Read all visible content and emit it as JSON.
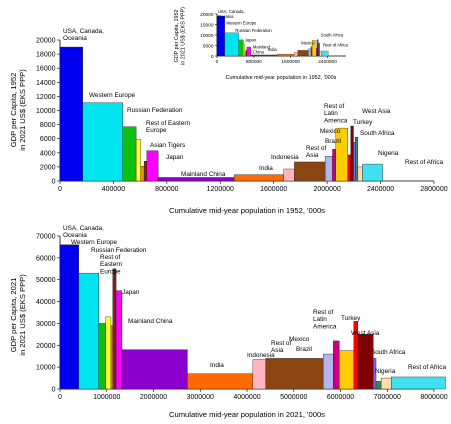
{
  "chart_data": [
    {
      "type": "bar",
      "variable_width": true,
      "title": "",
      "xlabel": "Cumulative mid-year population in 1952, '000s",
      "ylabel": "GDP per Capita, 1952 in 2021 US$ (EKS PPP)",
      "xlim": [
        0,
        2800000
      ],
      "ylim": [
        0,
        20000
      ],
      "xticks": [
        0,
        400000,
        800000,
        1200000,
        1600000,
        2000000,
        2400000,
        2800000
      ],
      "yticks": [
        0,
        2000,
        4000,
        6000,
        8000,
        10000,
        12000,
        14000,
        16000,
        18000,
        20000
      ],
      "bars": [
        {
          "label": "USA, Canada, Oceania",
          "population": 170000,
          "gdp": 19000,
          "color": "#0000ee"
        },
        {
          "label": "Western Europe",
          "population": 300000,
          "gdp": 11100,
          "color": "#00e5f0"
        },
        {
          "label": "Russian Federation",
          "population": 100000,
          "gdp": 7700,
          "color": "#10c010"
        },
        {
          "label": "Rest of Eastern Europe",
          "population": 35000,
          "gdp": 5900,
          "color": "#ffff33"
        },
        {
          "label": "",
          "population": 25000,
          "gdp": 2100,
          "color": "#ff8c00"
        },
        {
          "label": "Asian Tigers",
          "population": 20000,
          "gdp": 2800,
          "color": "#8b1a1a"
        },
        {
          "label": "Japan",
          "population": 85000,
          "gdp": 4300,
          "color": "#ff00ff"
        },
        {
          "label": "Mainland China",
          "population": 570000,
          "gdp": 500,
          "color": "#8b00cc"
        },
        {
          "label": "India",
          "population": 370000,
          "gdp": 900,
          "color": "#ff6a00"
        },
        {
          "label": "Indonesia",
          "population": 80000,
          "gdp": 1700,
          "color": "#ffb6c1"
        },
        {
          "label": "Rest of Asia",
          "population": 230000,
          "gdp": 2700,
          "color": "#8b4513"
        },
        {
          "label": "Brazil",
          "population": 55000,
          "gdp": 3500,
          "color": "#b4b4f0"
        },
        {
          "label": "Mexico",
          "population": 25000,
          "gdp": 4500,
          "color": "#c8007d"
        },
        {
          "label": "Rest of Latin America",
          "population": 90000,
          "gdp": 7500,
          "color": "#ffcc00"
        },
        {
          "label": "Turkey",
          "population": 22000,
          "gdp": 3700,
          "color": "#ff0000"
        },
        {
          "label": "West Asia",
          "population": 20000,
          "gdp": 7800,
          "color": "#800000"
        },
        {
          "label": "South Africa",
          "population": 13000,
          "gdp": 5500,
          "color": "#7b68ee"
        },
        {
          "label": "",
          "population": 20000,
          "gdp": 6200,
          "color": "#2e8b57"
        },
        {
          "label": "Nigeria",
          "population": 35000,
          "gdp": 2000,
          "color": "#ffdead"
        },
        {
          "label": "Rest of Africa",
          "population": 150000,
          "gdp": 2400,
          "color": "#40e0f0"
        }
      ]
    },
    {
      "type": "bar",
      "variable_width": true,
      "title": "",
      "xlabel": "Cumulative mid-year population in 2021, '000s",
      "ylabel": "GDP per Capita, 2021 in 2021 US$ (EKS PPP)",
      "xlim": [
        0,
        8000000
      ],
      "ylim": [
        0,
        70000
      ],
      "xticks": [
        0,
        1000000,
        2000000,
        3000000,
        4000000,
        5000000,
        6000000,
        7000000,
        8000000
      ],
      "yticks": [
        0,
        10000,
        20000,
        30000,
        40000,
        50000,
        60000,
        70000
      ],
      "bars": [
        {
          "label": "USA, Canada, Oceania",
          "population": 400000,
          "gdp": 66000,
          "color": "#0000ee"
        },
        {
          "label": "Western Europe",
          "population": 430000,
          "gdp": 53000,
          "color": "#00e5f0"
        },
        {
          "label": "",
          "population": 145000,
          "gdp": 30000,
          "color": "#10c010"
        },
        {
          "label": "Rest of Eastern Europe",
          "population": 115000,
          "gdp": 33000,
          "color": "#ffff33"
        },
        {
          "label": "Russian Federation",
          "population": 40000,
          "gdp": 29000,
          "color": "#ff8c00"
        },
        {
          "label": "",
          "population": 70000,
          "gdp": 55000,
          "color": "#8b1a1a"
        },
        {
          "label": "Japan",
          "population": 125000,
          "gdp": 45000,
          "color": "#ff00ff"
        },
        {
          "label": "Mainland China",
          "population": 1400000,
          "gdp": 18000,
          "color": "#8b00cc"
        },
        {
          "label": "India",
          "population": 1400000,
          "gdp": 7000,
          "color": "#ff6a00"
        },
        {
          "label": "Indonesia",
          "population": 275000,
          "gdp": 13500,
          "color": "#ffb6c1"
        },
        {
          "label": "Rest of Asia",
          "population": 1230000,
          "gdp": 14000,
          "color": "#8b4513"
        },
        {
          "label": "Brazil",
          "population": 215000,
          "gdp": 16000,
          "color": "#b4b4f0"
        },
        {
          "label": "Mexico",
          "population": 130000,
          "gdp": 22000,
          "color": "#c8007d"
        },
        {
          "label": "Rest of Latin America",
          "population": 310000,
          "gdp": 17500,
          "color": "#ffcc00"
        },
        {
          "label": "Turkey",
          "population": 85000,
          "gdp": 31000,
          "color": "#ff0000"
        },
        {
          "label": "West Asia",
          "population": 330000,
          "gdp": 25000,
          "color": "#800000"
        },
        {
          "label": "South Africa",
          "population": 60000,
          "gdp": 14000,
          "color": "#7b68ee"
        },
        {
          "label": "",
          "population": 110000,
          "gdp": 3500,
          "color": "#2e8b57"
        },
        {
          "label": "Nigeria",
          "population": 215000,
          "gdp": 5000,
          "color": "#ffdead"
        },
        {
          "label": "Rest of Africa",
          "population": 1160000,
          "gdp": 5500,
          "color": "#40e0f0"
        }
      ]
    },
    {
      "type": "bar",
      "variable_width": true,
      "inset_of": 0,
      "title": "",
      "xlabel": "Cumulative mid-year population in 1952, '000s",
      "ylabel": "GDP per Capita, 1952 in 2021 US$ (EKS PPP)",
      "xlim": [
        0,
        2800000
      ],
      "ylim": [
        0,
        20000
      ],
      "xticks": [
        0,
        800000,
        1600000,
        2400000
      ],
      "yticks": [
        0,
        5000,
        10000,
        15000,
        20000
      ],
      "labels": [
        {
          "label": "USA, Canada, Oceania",
          "x": 20000,
          "y": 20500
        },
        {
          "label": "Western Europe",
          "x": 200000,
          "y": 15000
        },
        {
          "label": "Russian Federation",
          "x": 400000,
          "y": 11500
        },
        {
          "label": "Japan",
          "x": 600000,
          "y": 7000
        },
        {
          "label": "Mainland China",
          "x": 780000,
          "y": 3500
        },
        {
          "label": "India",
          "x": 1100000,
          "y": 2500
        },
        {
          "label": "Mexico",
          "x": 1830000,
          "y": 5500
        },
        {
          "label": "South Africa",
          "x": 2250000,
          "y": 9200
        },
        {
          "label": "Rest of Africa",
          "x": 2300000,
          "y": 4500
        }
      ]
    }
  ]
}
